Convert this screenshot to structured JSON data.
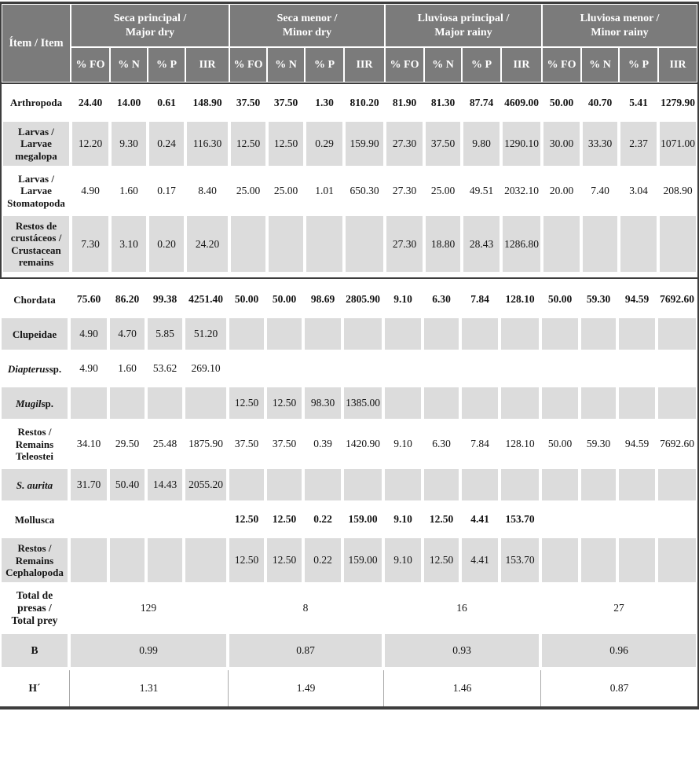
{
  "table": {
    "item_header": "Ítem / Item",
    "groups": [
      {
        "label": "Seca principal /\nMajor dry"
      },
      {
        "label": "Seca menor /\nMinor dry"
      },
      {
        "label": "Lluviosa principal /\nMajor rainy"
      },
      {
        "label": "Lluviosa menor /\nMinor rainy"
      }
    ],
    "subcols": [
      "% FO",
      "% N",
      "% P",
      "IIR"
    ],
    "rows": [
      {
        "label_i": "",
        "label_r": "Arthropoda",
        "bold": true,
        "shaded": false,
        "values": [
          "24.40",
          "14.00",
          "0.61",
          "148.90",
          "37.50",
          "37.50",
          "1.30",
          "810.20",
          "81.90",
          "81.30",
          "87.74",
          "4609.00",
          "50.00",
          "40.70",
          "5.41",
          "1279.90"
        ]
      },
      {
        "label_i": "",
        "label_r": "Larvas /\nLarvae\nmegalopa",
        "bold": false,
        "shaded": true,
        "values": [
          "12.20",
          "9.30",
          "0.24",
          "116.30",
          "12.50",
          "12.50",
          "0.29",
          "159.90",
          "27.30",
          "37.50",
          "9.80",
          "1290.10",
          "30.00",
          "33.30",
          "2.37",
          "1071.00"
        ]
      },
      {
        "label_i": "",
        "label_r": "Larvas /\nLarvae\nStomatopoda",
        "bold": false,
        "shaded": false,
        "values": [
          "4.90",
          "1.60",
          "0.17",
          "8.40",
          "25.00",
          "25.00",
          "1.01",
          "650.30",
          "27.30",
          "25.00",
          "49.51",
          "2032.10",
          "20.00",
          "7.40",
          "3.04",
          "208.90"
        ]
      },
      {
        "label_i": "",
        "label_r": "Restos de\ncrustáceos /\nCrustacean\nremains",
        "bold": false,
        "shaded": true,
        "values": [
          "7.30",
          "3.10",
          "0.20",
          "24.20",
          "",
          "",
          "",
          "",
          "27.30",
          "18.80",
          "28.43",
          "1286.80",
          "",
          "",
          "",
          ""
        ]
      },
      {
        "label_i": "",
        "label_r": "Chordata",
        "bold": true,
        "shaded": false,
        "values": [
          "75.60",
          "86.20",
          "99.38",
          "4251.40",
          "50.00",
          "50.00",
          "98.69",
          "2805.90",
          "9.10",
          "6.30",
          "7.84",
          "128.10",
          "50.00",
          "59.30",
          "94.59",
          "7692.60"
        ]
      },
      {
        "label_i": "",
        "label_r": "Clupeidae",
        "bold": false,
        "shaded": true,
        "values": [
          "4.90",
          "4.70",
          "5.85",
          "51.20",
          "",
          "",
          "",
          "",
          "",
          "",
          "",
          "",
          "",
          "",
          "",
          ""
        ]
      },
      {
        "label_i": "Diapterus",
        "label_r": " sp.",
        "bold": false,
        "shaded": false,
        "values": [
          "4.90",
          "1.60",
          "53.62",
          "269.10",
          "",
          "",
          "",
          "",
          "",
          "",
          "",
          "",
          "",
          "",
          "",
          ""
        ]
      },
      {
        "label_i": "Mugil",
        "label_r": " sp.",
        "bold": false,
        "shaded": true,
        "values": [
          "",
          "",
          "",
          "",
          "12.50",
          "12.50",
          "98.30",
          "1385.00",
          "",
          "",
          "",
          "",
          "",
          "",
          "",
          ""
        ]
      },
      {
        "label_i": "",
        "label_r": "Restos /\nRemains\nTeleostei",
        "bold": false,
        "shaded": false,
        "values": [
          "34.10",
          "29.50",
          "25.48",
          "1875.90",
          "37.50",
          "37.50",
          "0.39",
          "1420.90",
          "9.10",
          "6.30",
          "7.84",
          "128.10",
          "50.00",
          "59.30",
          "94.59",
          "7692.60"
        ]
      },
      {
        "label_i": "S. aurita",
        "label_r": "",
        "bold": false,
        "shaded": true,
        "values": [
          "31.70",
          "50.40",
          "14.43",
          "2055.20",
          "",
          "",
          "",
          "",
          "",
          "",
          "",
          "",
          "",
          "",
          "",
          ""
        ]
      },
      {
        "label_i": "",
        "label_r": "Mollusca",
        "bold": true,
        "shaded": false,
        "values": [
          "",
          "",
          "",
          "",
          "12.50",
          "12.50",
          "0.22",
          "159.00",
          "9.10",
          "12.50",
          "4.41",
          "153.70",
          "",
          "",
          "",
          ""
        ]
      },
      {
        "label_i": "",
        "label_r": "Restos /\nRemains\nCephalopoda",
        "bold": false,
        "shaded": true,
        "values": [
          "",
          "",
          "",
          "",
          "12.50",
          "12.50",
          "0.22",
          "159.00",
          "9.10",
          "12.50",
          "4.41",
          "153.70",
          "",
          "",
          "",
          ""
        ]
      }
    ],
    "summary_rows": [
      {
        "label": "Total de\npresas /\nTotal prey",
        "shaded": false,
        "bordered": false,
        "values": [
          "129",
          "8",
          "16",
          "27"
        ]
      },
      {
        "label": "B",
        "shaded": true,
        "bordered": false,
        "values": [
          "0.99",
          "0.87",
          "0.93",
          "0.96"
        ]
      },
      {
        "label": "H´",
        "shaded": false,
        "bordered": true,
        "values": [
          "1.31",
          "1.49",
          "1.46",
          "0.87"
        ]
      }
    ],
    "colors": {
      "header_bg": "#7b7b7b",
      "header_text": "#ffffff",
      "shaded_row_bg": "#dcdcdc",
      "border_dark": "#3d3d3d"
    }
  }
}
